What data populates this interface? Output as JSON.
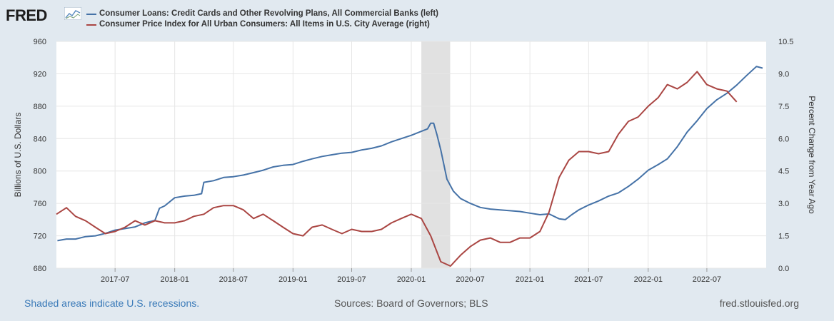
{
  "brand": {
    "logo_text": "FRED",
    "logo_icon": "line-chart-icon"
  },
  "footer": {
    "recession_note": "Shaded areas indicate U.S. recessions.",
    "sources": "Sources: Board of Governors; BLS",
    "site": "fred.stlouisfed.org"
  },
  "chart_data": {
    "type": "line",
    "series": [
      {
        "name": "Consumer Loans: Credit Cards and Other Revolving Plans, All Commercial Banks (left)",
        "axis": "left",
        "color": "#4572a7",
        "points": [
          [
            "2017-01-04",
            714
          ],
          [
            "2017-02-01",
            716
          ],
          [
            "2017-03-01",
            716
          ],
          [
            "2017-04-01",
            719
          ],
          [
            "2017-05-01",
            720
          ],
          [
            "2017-06-01",
            723
          ],
          [
            "2017-07-01",
            727
          ],
          [
            "2017-08-01",
            729
          ],
          [
            "2017-09-01",
            731
          ],
          [
            "2017-10-01",
            736
          ],
          [
            "2017-11-01",
            739
          ],
          [
            "2017-11-15",
            754
          ],
          [
            "2017-12-01",
            757
          ],
          [
            "2018-01-01",
            767
          ],
          [
            "2018-02-01",
            769
          ],
          [
            "2018-03-01",
            770
          ],
          [
            "2018-03-25",
            772
          ],
          [
            "2018-04-01",
            786
          ],
          [
            "2018-05-01",
            788
          ],
          [
            "2018-06-01",
            792
          ],
          [
            "2018-07-01",
            793
          ],
          [
            "2018-08-01",
            795
          ],
          [
            "2018-09-01",
            798
          ],
          [
            "2018-10-01",
            801
          ],
          [
            "2018-11-01",
            805
          ],
          [
            "2018-12-01",
            807
          ],
          [
            "2019-01-01",
            808
          ],
          [
            "2019-02-01",
            812
          ],
          [
            "2019-03-01",
            815
          ],
          [
            "2019-04-01",
            818
          ],
          [
            "2019-05-01",
            820
          ],
          [
            "2019-06-01",
            822
          ],
          [
            "2019-07-01",
            823
          ],
          [
            "2019-08-01",
            826
          ],
          [
            "2019-09-01",
            828
          ],
          [
            "2019-10-01",
            831
          ],
          [
            "2019-11-01",
            836
          ],
          [
            "2019-12-01",
            840
          ],
          [
            "2020-01-01",
            844
          ],
          [
            "2020-02-01",
            849
          ],
          [
            "2020-02-20",
            852
          ],
          [
            "2020-03-01",
            859
          ],
          [
            "2020-03-10",
            859
          ],
          [
            "2020-03-20",
            845
          ],
          [
            "2020-04-01",
            826
          ],
          [
            "2020-04-20",
            790
          ],
          [
            "2020-05-10",
            775
          ],
          [
            "2020-06-01",
            766
          ],
          [
            "2020-07-01",
            760
          ],
          [
            "2020-08-01",
            755
          ],
          [
            "2020-09-01",
            753
          ],
          [
            "2020-10-01",
            752
          ],
          [
            "2020-11-01",
            751
          ],
          [
            "2020-12-01",
            750
          ],
          [
            "2021-01-01",
            748
          ],
          [
            "2021-02-01",
            746
          ],
          [
            "2021-03-01",
            747
          ],
          [
            "2021-04-01",
            741
          ],
          [
            "2021-04-20",
            740
          ],
          [
            "2021-05-10",
            746
          ],
          [
            "2021-06-01",
            752
          ],
          [
            "2021-07-01",
            758
          ],
          [
            "2021-08-01",
            763
          ],
          [
            "2021-09-01",
            769
          ],
          [
            "2021-10-01",
            773
          ],
          [
            "2021-11-01",
            781
          ],
          [
            "2021-12-01",
            790
          ],
          [
            "2022-01-01",
            801
          ],
          [
            "2022-02-01",
            808
          ],
          [
            "2022-03-01",
            815
          ],
          [
            "2022-04-01",
            830
          ],
          [
            "2022-05-01",
            848
          ],
          [
            "2022-06-01",
            862
          ],
          [
            "2022-07-01",
            877
          ],
          [
            "2022-08-01",
            888
          ],
          [
            "2022-09-01",
            896
          ],
          [
            "2022-10-01",
            906
          ],
          [
            "2022-11-01",
            918
          ],
          [
            "2022-12-01",
            929
          ],
          [
            "2022-12-20",
            927
          ]
        ]
      },
      {
        "name": "Consumer Price Index for All Urban Consumers: All Items in U.S. City Average (right)",
        "axis": "right",
        "color": "#aa4643",
        "points": [
          [
            "2017-01-01",
            2.5
          ],
          [
            "2017-02-01",
            2.8
          ],
          [
            "2017-03-01",
            2.4
          ],
          [
            "2017-04-01",
            2.2
          ],
          [
            "2017-05-01",
            1.9
          ],
          [
            "2017-06-01",
            1.6
          ],
          [
            "2017-07-01",
            1.7
          ],
          [
            "2017-08-01",
            1.9
          ],
          [
            "2017-09-01",
            2.2
          ],
          [
            "2017-10-01",
            2.0
          ],
          [
            "2017-11-01",
            2.2
          ],
          [
            "2017-12-01",
            2.1
          ],
          [
            "2018-01-01",
            2.1
          ],
          [
            "2018-02-01",
            2.2
          ],
          [
            "2018-03-01",
            2.4
          ],
          [
            "2018-04-01",
            2.5
          ],
          [
            "2018-05-01",
            2.8
          ],
          [
            "2018-06-01",
            2.9
          ],
          [
            "2018-07-01",
            2.9
          ],
          [
            "2018-08-01",
            2.7
          ],
          [
            "2018-09-01",
            2.3
          ],
          [
            "2018-10-01",
            2.5
          ],
          [
            "2018-11-01",
            2.2
          ],
          [
            "2018-12-01",
            1.9
          ],
          [
            "2019-01-01",
            1.6
          ],
          [
            "2019-02-01",
            1.5
          ],
          [
            "2019-03-01",
            1.9
          ],
          [
            "2019-04-01",
            2.0
          ],
          [
            "2019-05-01",
            1.8
          ],
          [
            "2019-06-01",
            1.6
          ],
          [
            "2019-07-01",
            1.8
          ],
          [
            "2019-08-01",
            1.7
          ],
          [
            "2019-09-01",
            1.7
          ],
          [
            "2019-10-01",
            1.8
          ],
          [
            "2019-11-01",
            2.1
          ],
          [
            "2019-12-01",
            2.3
          ],
          [
            "2020-01-01",
            2.5
          ],
          [
            "2020-02-01",
            2.3
          ],
          [
            "2020-03-01",
            1.5
          ],
          [
            "2020-04-01",
            0.3
          ],
          [
            "2020-05-01",
            0.1
          ],
          [
            "2020-06-01",
            0.6
          ],
          [
            "2020-07-01",
            1.0
          ],
          [
            "2020-08-01",
            1.3
          ],
          [
            "2020-09-01",
            1.4
          ],
          [
            "2020-10-01",
            1.2
          ],
          [
            "2020-11-01",
            1.2
          ],
          [
            "2020-12-01",
            1.4
          ],
          [
            "2021-01-01",
            1.4
          ],
          [
            "2021-02-01",
            1.7
          ],
          [
            "2021-03-01",
            2.6
          ],
          [
            "2021-04-01",
            4.2
          ],
          [
            "2021-05-01",
            5.0
          ],
          [
            "2021-06-01",
            5.4
          ],
          [
            "2021-07-01",
            5.4
          ],
          [
            "2021-08-01",
            5.3
          ],
          [
            "2021-09-01",
            5.4
          ],
          [
            "2021-10-01",
            6.2
          ],
          [
            "2021-11-01",
            6.8
          ],
          [
            "2021-12-01",
            7.0
          ],
          [
            "2022-01-01",
            7.5
          ],
          [
            "2022-02-01",
            7.9
          ],
          [
            "2022-03-01",
            8.5
          ],
          [
            "2022-04-01",
            8.3
          ],
          [
            "2022-05-01",
            8.6
          ],
          [
            "2022-06-01",
            9.1
          ],
          [
            "2022-07-01",
            8.5
          ],
          [
            "2022-08-01",
            8.3
          ],
          [
            "2022-09-01",
            8.2
          ],
          [
            "2022-10-01",
            7.7
          ]
        ]
      }
    ],
    "left_axis": {
      "label": "Billions of U.S. Dollars",
      "range": [
        680,
        960
      ],
      "ticks": [
        "680",
        "720",
        "760",
        "800",
        "840",
        "880",
        "920",
        "960"
      ]
    },
    "right_axis": {
      "label": "Percent Change from Year Ago",
      "range": [
        0,
        10.5
      ],
      "ticks": [
        "0.0",
        "1.5",
        "3.0",
        "4.5",
        "6.0",
        "7.5",
        "9.0",
        "10.5"
      ]
    },
    "x_axis": {
      "range": [
        "2017-01-01",
        "2022-12-31"
      ],
      "ticks": [
        "2017-07",
        "2018-01",
        "2018-07",
        "2019-01",
        "2019-07",
        "2020-01",
        "2020-07",
        "2021-01",
        "2021-07",
        "2022-01",
        "2022-07"
      ]
    },
    "recessions": [
      {
        "start": "2020-02-01",
        "end": "2020-04-30"
      }
    ],
    "grid": true,
    "legend_placement": "top"
  }
}
